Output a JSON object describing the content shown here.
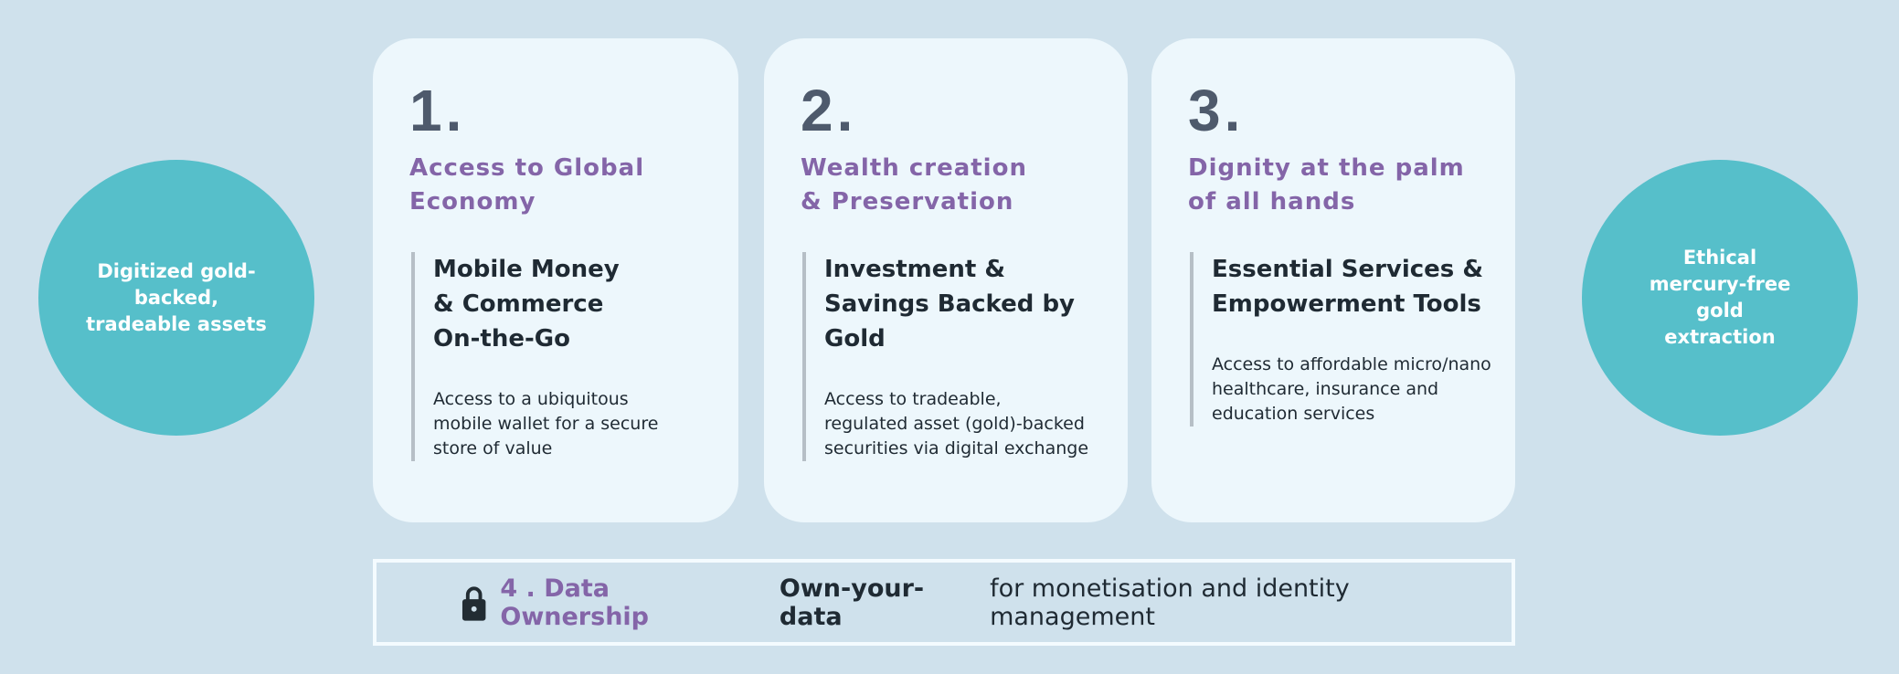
{
  "left_circle": {
    "text": "Digitized gold-backed, tradeable assets"
  },
  "right_circle": {
    "text": "Ethical mercury-free gold extraction"
  },
  "cards": [
    {
      "number": "1.",
      "title": "Access to Global Economy",
      "heading": "Mobile Money & Commerce On-the-Go",
      "body": "Access to a ubiquitous mobile wallet for a secure store of value"
    },
    {
      "number": "2.",
      "title": "Wealth creation & Preservation",
      "heading": "Investment & Savings Backed by Gold",
      "body": "Access to tradeable, regulated asset (gold)-backed securities via digital exchange"
    },
    {
      "number": "3.",
      "title": "Dignity at the palm of all hands",
      "heading": "Essential Services & Empowerment Tools",
      "body": "Access to affordable micro/nano healthcare, insurance and education services"
    }
  ],
  "bottom": {
    "icon": "lock-icon",
    "title": "4 . Data Ownership",
    "bold": "Own-your-data",
    "text": "for monetisation and identity management"
  },
  "colors": {
    "background": "#cfe1ec",
    "circle": "#56bfca",
    "card": "#edf7fc",
    "accent": "#8465a8",
    "number": "#4e5a6c"
  }
}
